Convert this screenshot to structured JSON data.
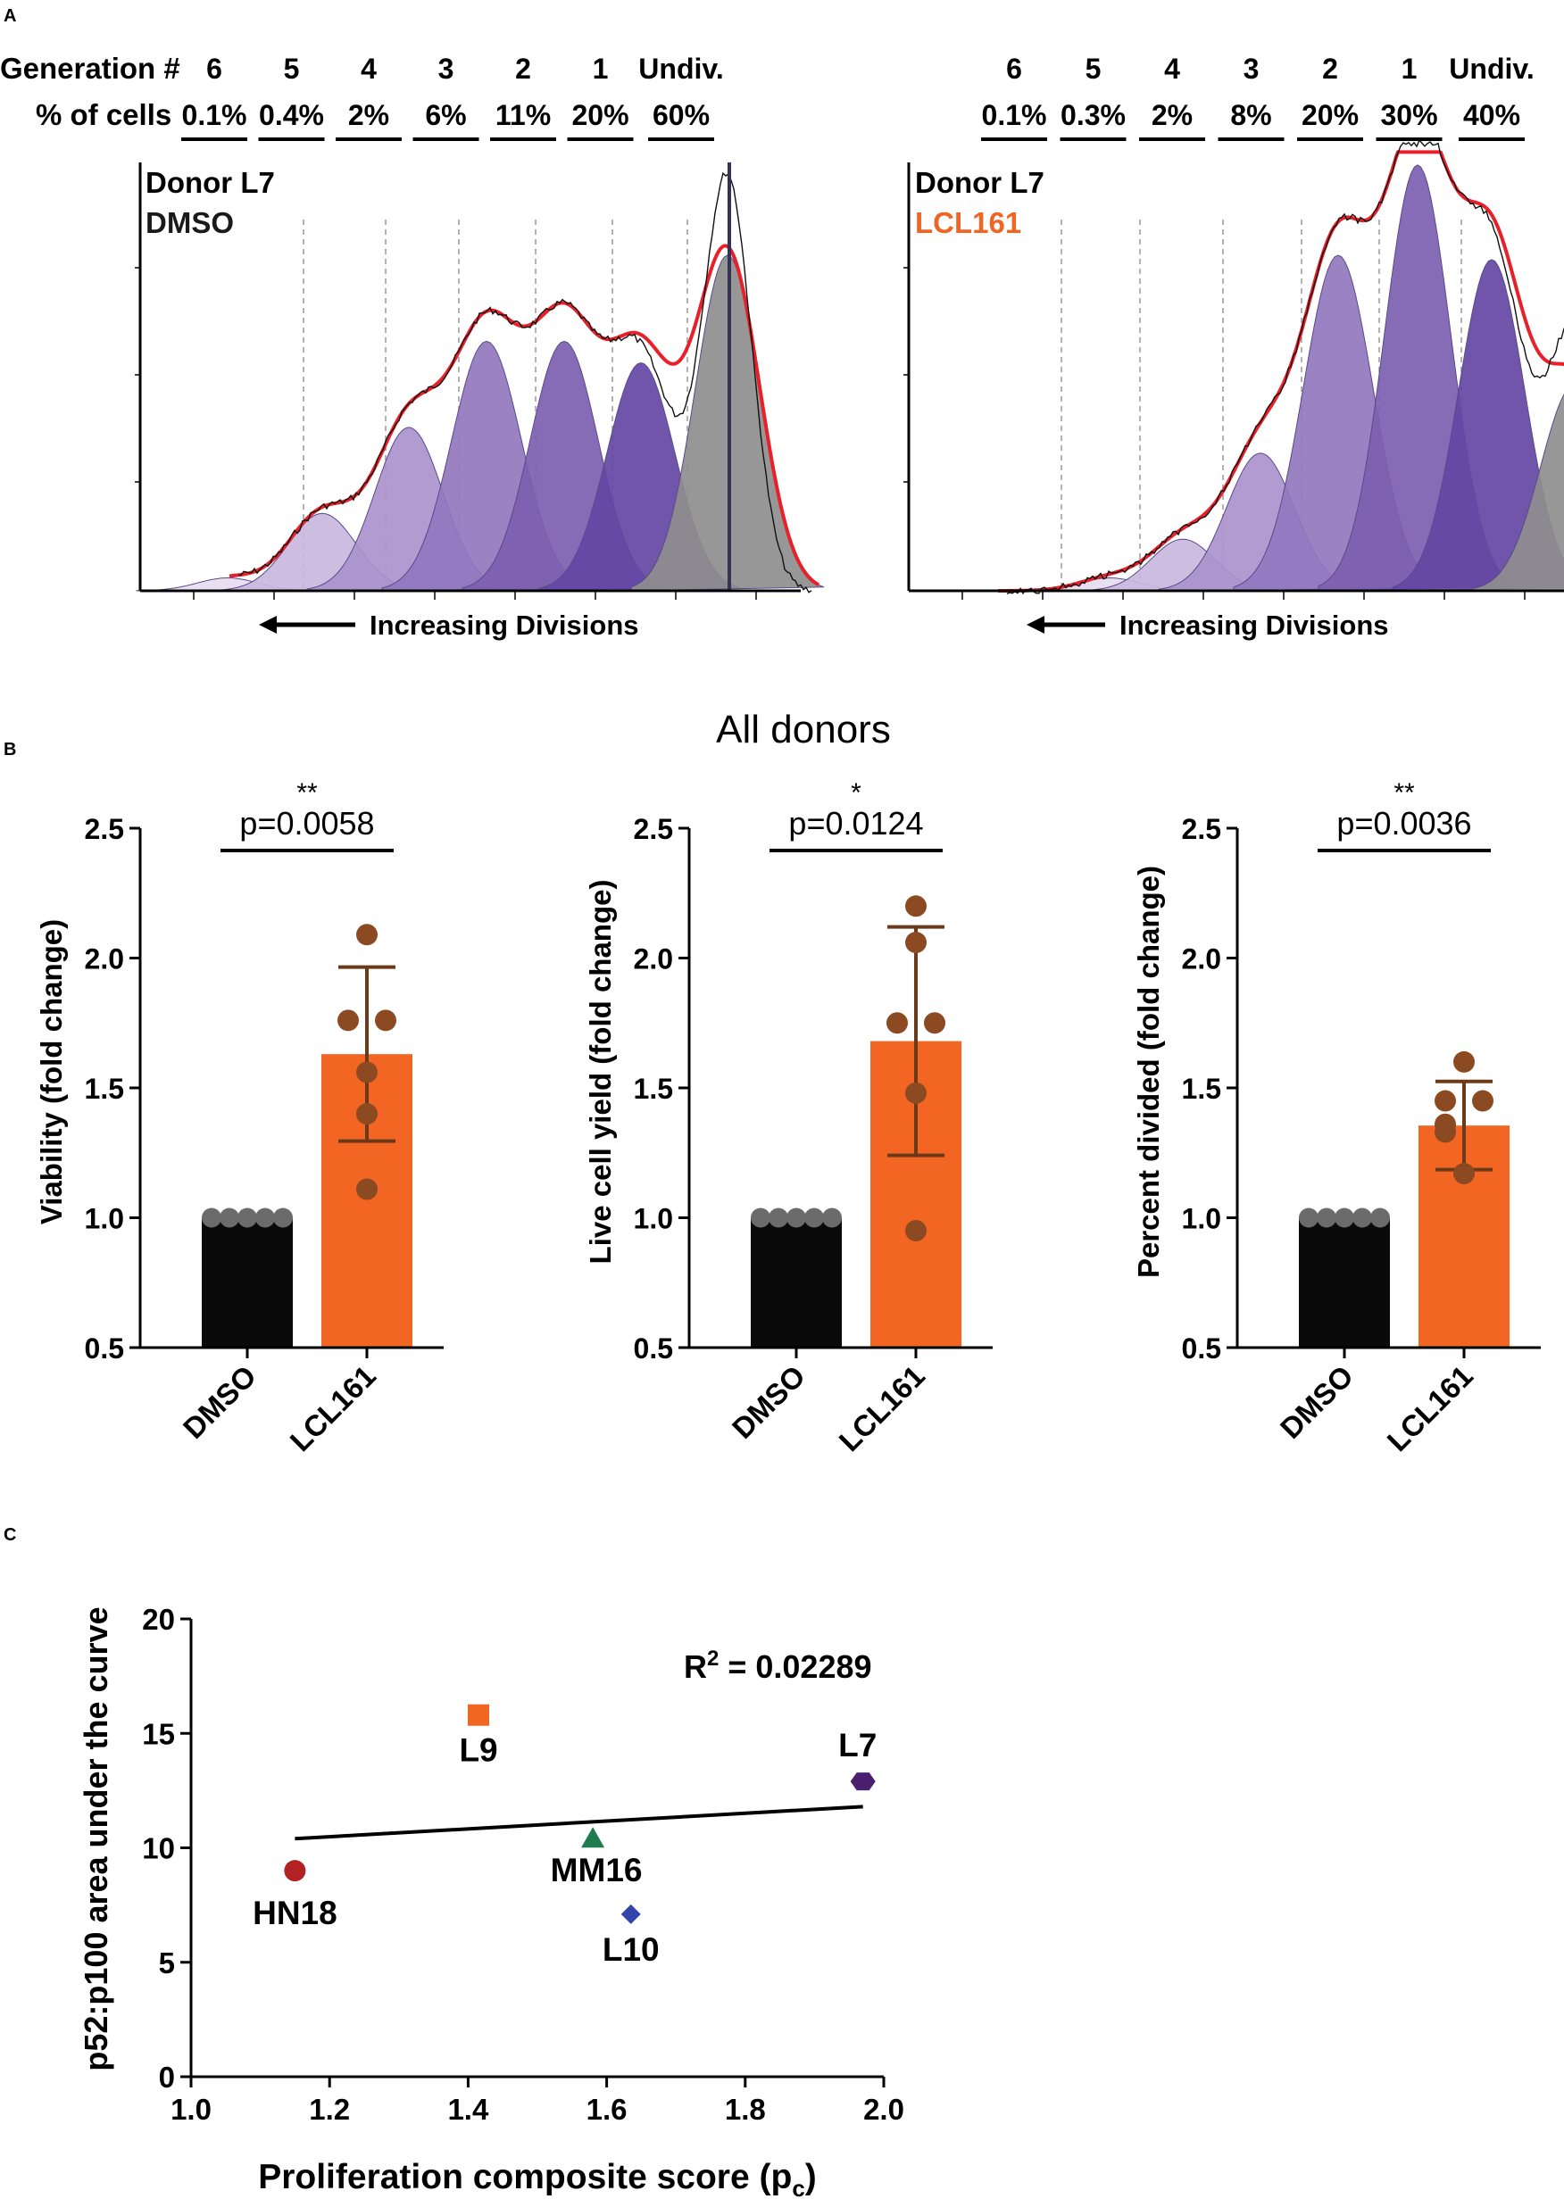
{
  "panel_labels": {
    "a": "A",
    "b": "B",
    "c": "C"
  },
  "chart_data": [
    {
      "panel": "A",
      "type": "histogram",
      "row_labels": {
        "generation": "Generation #",
        "percent": "% of cells"
      },
      "axis_caption": "Increasing  Divisions",
      "plots": [
        {
          "donor": "Donor L7",
          "treatment": "DMSO",
          "treatment_color": "#1a1a1a",
          "generations": [
            "6",
            "5",
            "4",
            "3",
            "2",
            "1",
            "Undiv."
          ],
          "percent_of_cells": [
            "0.1%",
            "0.4%",
            "2%",
            "6%",
            "11%",
            "20%",
            "60%"
          ],
          "peak_heights": [
            0.03,
            0.18,
            0.38,
            0.58,
            0.58,
            0.53,
            0.78
          ],
          "overlay_peaks": [
            0.1,
            0.08,
            0.16,
            0.34,
            0.63,
            0.64,
            0.62,
            0.98
          ]
        },
        {
          "donor": "Donor L7",
          "treatment": "LCL161",
          "treatment_color": "#f06424",
          "generations": [
            "6",
            "5",
            "4",
            "3",
            "2",
            "1",
            "Undiv."
          ],
          "percent_of_cells": [
            "0.1%",
            "0.3%",
            "2%",
            "8%",
            "20%",
            "30%",
            "40%"
          ],
          "peak_heights": [
            0.03,
            0.12,
            0.32,
            0.78,
            0.99,
            0.77,
            0.48
          ],
          "overlay_peaks": [
            0.06,
            0.12,
            0.33,
            0.8,
            1.0,
            0.78,
            0.5,
            0.56
          ]
        }
      ]
    },
    {
      "panel": "B",
      "type": "bar",
      "title": "All donors",
      "categories": [
        "DMSO",
        "LCL161"
      ],
      "ylim": [
        0.5,
        2.5
      ],
      "yticks": [
        "0.5",
        "1.0",
        "1.5",
        "2.0",
        "2.5"
      ],
      "colors": {
        "DMSO": "#0a0a0a",
        "LCL161": "#f26522",
        "points_dmso": "#6b6b6b",
        "points_lcl": "#8b4a22",
        "error": "#6b3a1a"
      },
      "plots": [
        {
          "ylabel": "Viability (fold change)",
          "stars": "**",
          "p_text": "p=0.0058",
          "means": [
            1.0,
            1.63
          ],
          "error": [
            0.0,
            0.335
          ],
          "points": [
            [
              1,
              1,
              1,
              1,
              1
            ],
            [
              2.09,
              1.76,
              1.76,
              1.56,
              1.4,
              1.11
            ]
          ]
        },
        {
          "ylabel": "Live cell yield (fold change)",
          "stars": "*",
          "p_text": "p=0.0124",
          "means": [
            1.0,
            1.68
          ],
          "error": [
            0.0,
            0.44
          ],
          "points": [
            [
              1,
              1,
              1,
              1,
              1
            ],
            [
              2.2,
              2.06,
              1.75,
              1.75,
              1.48,
              0.95
            ]
          ]
        },
        {
          "ylabel": "Percent divided (fold change)",
          "stars": "**",
          "p_text": "p=0.0036",
          "means": [
            1.0,
            1.355
          ],
          "error": [
            0.0,
            0.17
          ],
          "points": [
            [
              1,
              1,
              1,
              1,
              1
            ],
            [
              1.6,
              1.45,
              1.45,
              1.36,
              1.33,
              1.17
            ]
          ]
        }
      ]
    },
    {
      "panel": "C",
      "type": "scatter",
      "xlabel": "Proliferation composite score (p",
      "xlabel_sub": "c",
      "xlabel_end": ")",
      "ylabel": "p52:p100 area under the curve",
      "xlim": [
        1.0,
        2.0
      ],
      "ylim": [
        0,
        20
      ],
      "xticks": [
        "1.0",
        "1.2",
        "1.4",
        "1.6",
        "1.8",
        "2.0"
      ],
      "yticks": [
        "0",
        "5",
        "10",
        "15",
        "20"
      ],
      "r2_label": "R",
      "r2_sup": "2",
      "r2_value": " = 0.02289",
      "fit_line": {
        "x": [
          1.15,
          1.97
        ],
        "y": [
          10.4,
          11.8
        ]
      },
      "points": [
        {
          "label": "HN18",
          "x": 1.15,
          "y": 9.0,
          "shape": "circle",
          "color": "#b22222"
        },
        {
          "label": "L9",
          "x": 1.415,
          "y": 15.8,
          "shape": "square",
          "color": "#f26522"
        },
        {
          "label": "MM16",
          "x": 1.58,
          "y": 10.4,
          "shape": "triangle",
          "color": "#1f7a4d"
        },
        {
          "label": "L10",
          "x": 1.635,
          "y": 7.1,
          "shape": "diamond",
          "color": "#3344aa"
        },
        {
          "label": "L7",
          "x": 1.97,
          "y": 12.9,
          "shape": "hexagon",
          "color": "#4a1f6e"
        }
      ]
    }
  ]
}
